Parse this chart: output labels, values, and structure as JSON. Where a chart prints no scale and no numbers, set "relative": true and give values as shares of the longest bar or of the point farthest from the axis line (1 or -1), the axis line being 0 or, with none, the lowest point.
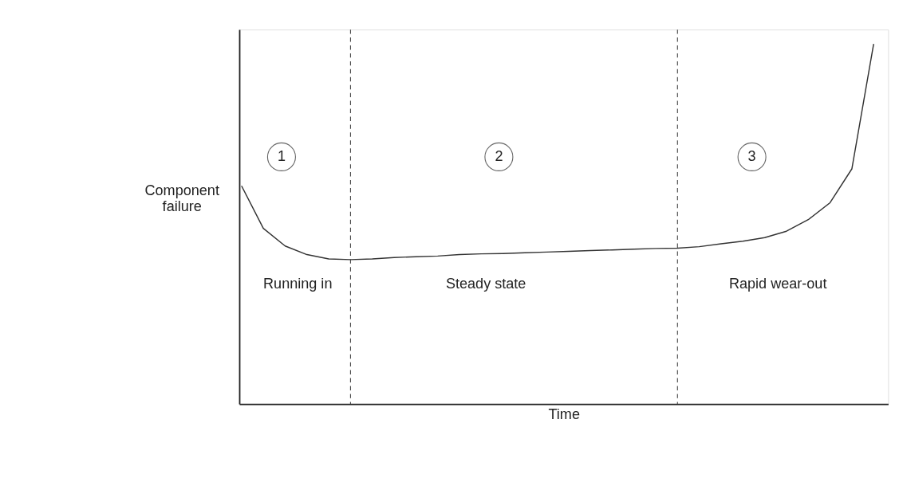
{
  "chart_data": {
    "type": "line",
    "relative": true,
    "xlabel": "Time",
    "ylabel": "Component failure",
    "categories": [
      null,
      null,
      null,
      null,
      null,
      null,
      null,
      null,
      null,
      null,
      null,
      null,
      null,
      null,
      null,
      null,
      null,
      null,
      null,
      null,
      null,
      null,
      null,
      null,
      null,
      null,
      null,
      null,
      null,
      null
    ],
    "tick_labels": false,
    "series": [
      {
        "color": "#333333",
        "values": [
          0.606,
          0.488,
          0.439,
          0.415,
          0.403,
          0.401,
          0.403,
          0.407,
          0.409,
          0.411,
          0.415,
          0.417,
          0.418,
          0.42,
          0.422,
          0.424,
          0.426,
          0.428,
          0.43,
          0.432,
          0.433,
          0.437,
          0.445,
          0.452,
          0.462,
          0.48,
          0.512,
          0.559,
          0.653,
          1.0
        ]
      }
    ],
    "annotations": [
      "1",
      "2",
      "3",
      "Running in",
      "Steady state",
      "Rapid wear-out"
    ]
  }
}
